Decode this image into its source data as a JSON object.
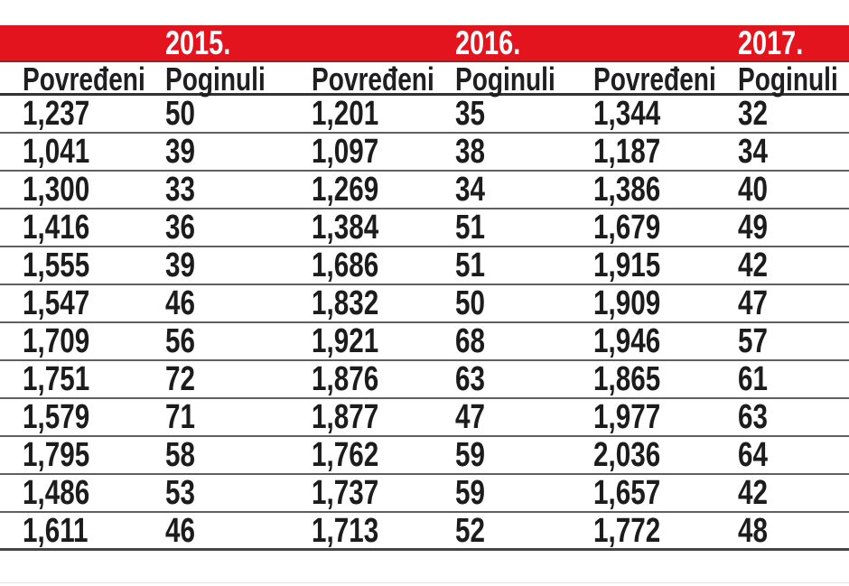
{
  "colors": {
    "accent_red": "#e3141e",
    "row_line_gray": "#606060",
    "header_line_dark": "#333333",
    "text": "#1c1c1c"
  },
  "header": {
    "years": [
      "2015.",
      "2016.",
      "2017."
    ]
  },
  "table": {
    "column_headers": [
      "Povređeni",
      "Poginuli",
      "Povređeni",
      "Poginuli",
      "Povređeni",
      "Poginuli"
    ],
    "rows": [
      [
        "1,237",
        "50",
        "1,201",
        "35",
        "1,344",
        "32"
      ],
      [
        "1,041",
        "39",
        "1,097",
        "38",
        "1,187",
        "34"
      ],
      [
        "1,300",
        "33",
        "1,269",
        "34",
        "1,386",
        "40"
      ],
      [
        "1,416",
        "36",
        "1,384",
        "51",
        "1,679",
        "49"
      ],
      [
        "1,555",
        "39",
        "1,686",
        "51",
        "1,915",
        "42"
      ],
      [
        "1,547",
        "46",
        "1,832",
        "50",
        "1,909",
        "47"
      ],
      [
        "1,709",
        "56",
        "1,921",
        "68",
        "1,946",
        "57"
      ],
      [
        "1,751",
        "72",
        "1,876",
        "63",
        "1,865",
        "61"
      ],
      [
        "1,579",
        "71",
        "1,877",
        "47",
        "1,977",
        "63"
      ],
      [
        "1,795",
        "58",
        "1,762",
        "59",
        "2,036",
        "64"
      ],
      [
        "1,486",
        "53",
        "1,737",
        "59",
        "1,657",
        "42"
      ],
      [
        "1,611",
        "46",
        "1,713",
        "52",
        "1,772",
        "48"
      ]
    ]
  },
  "chart_data": {
    "type": "table",
    "years": [
      "2015.",
      "2016.",
      "2017."
    ],
    "measures": [
      "Povređeni",
      "Poginuli"
    ],
    "row_count": 12,
    "series": [
      {
        "name": "2015. Povređeni",
        "values": [
          1237,
          1041,
          1300,
          1416,
          1555,
          1547,
          1709,
          1751,
          1579,
          1795,
          1486,
          1611
        ]
      },
      {
        "name": "2015. Poginuli",
        "values": [
          50,
          39,
          33,
          36,
          39,
          46,
          56,
          72,
          71,
          58,
          53,
          46
        ]
      },
      {
        "name": "2016. Povređeni",
        "values": [
          1201,
          1097,
          1269,
          1384,
          1686,
          1832,
          1921,
          1876,
          1877,
          1762,
          1737,
          1713
        ]
      },
      {
        "name": "2016. Poginuli",
        "values": [
          35,
          38,
          34,
          51,
          51,
          50,
          68,
          63,
          47,
          59,
          59,
          52
        ]
      },
      {
        "name": "2017. Povređeni",
        "values": [
          1344,
          1187,
          1386,
          1679,
          1915,
          1909,
          1946,
          1865,
          1977,
          2036,
          1657,
          1772
        ]
      },
      {
        "name": "2017. Poginuli",
        "values": [
          32,
          34,
          40,
          49,
          42,
          47,
          57,
          61,
          63,
          64,
          42,
          48
        ]
      }
    ]
  }
}
